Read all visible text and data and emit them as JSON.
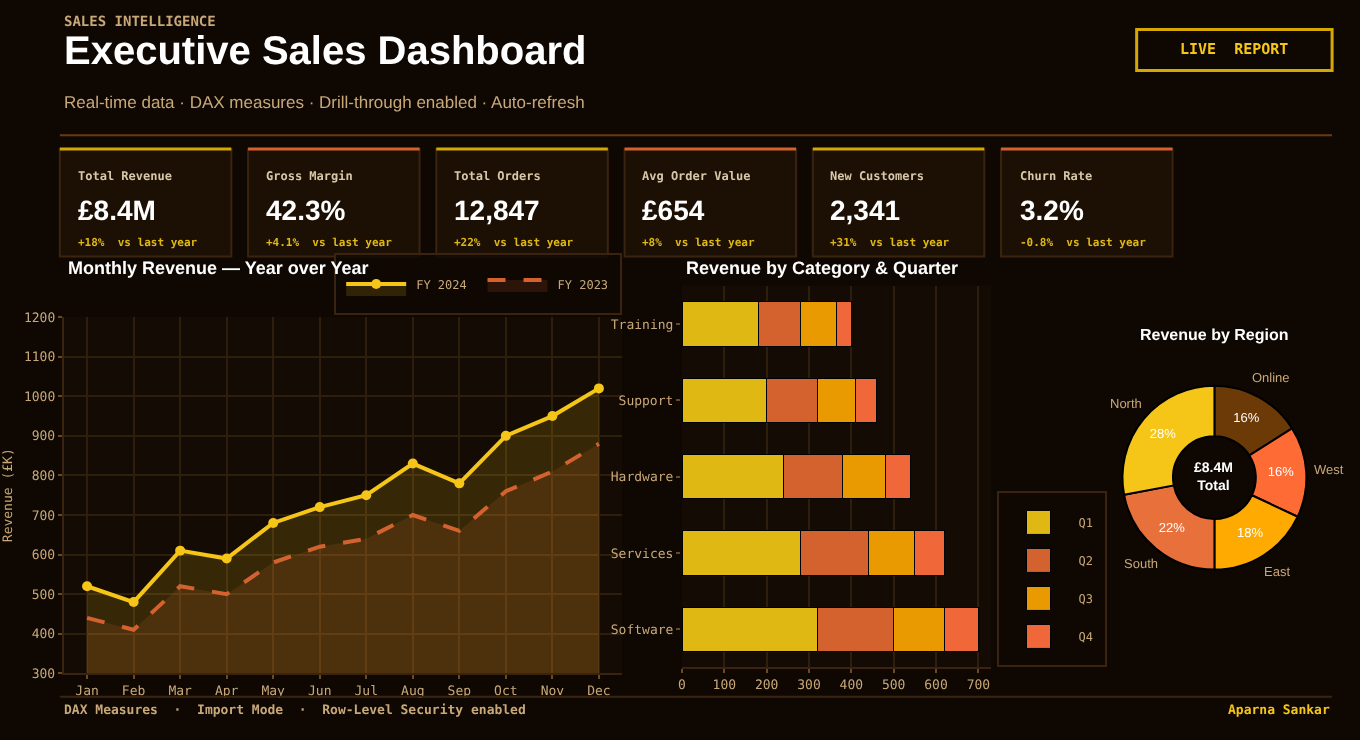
{
  "chart_data": [
    {
      "type": "other",
      "title": "Executive Sales Dashboard",
      "subtitle": "Real-time data · DAX measures · Drill-through enabled · Auto-refresh",
      "annotations": [
        "SALES INTELLIGENCE",
        "LIVE  REPORT",
        "DAX Measures  ·  Import Mode  ·  Row-Level Security enabled",
        "Aparna Sankar"
      ]
    },
    {
      "type": "other",
      "title": "Total Revenue",
      "annotations": [
        "£8.4M",
        "+18%  vs last year"
      ]
    },
    {
      "type": "other",
      "title": "Gross Margin",
      "annotations": [
        "42.3%",
        "+4.1%  vs last year"
      ]
    },
    {
      "type": "other",
      "title": "Total Orders",
      "annotations": [
        "12,847",
        "+22%  vs last year"
      ]
    },
    {
      "type": "other",
      "title": "Avg Order Value",
      "annotations": [
        "£654",
        "+8%  vs last year"
      ]
    },
    {
      "type": "other",
      "title": "New Customers",
      "annotations": [
        "2,341",
        "+31%  vs last year"
      ]
    },
    {
      "type": "other",
      "title": "Churn Rate",
      "annotations": [
        "3.2%",
        "-0.8%  vs last year"
      ]
    },
    {
      "type": "area",
      "title": "Monthly Revenue — Year over Year",
      "ylabel": "Revenue (£K)",
      "categories": [
        "Jan",
        "Feb",
        "Mar",
        "Apr",
        "May",
        "Jun",
        "Jul",
        "Aug",
        "Sep",
        "Oct",
        "Nov",
        "Dec"
      ],
      "ylim": [
        300,
        1200
      ],
      "yticks": [
        300,
        400,
        500,
        600,
        700,
        800,
        900,
        1000,
        1100,
        1200
      ],
      "grid": true,
      "legend": "top right",
      "series": [
        {
          "name": "FY 2024",
          "color": "#f5c518",
          "marker": "circle",
          "line_style": "solid",
          "values": [
            520,
            480,
            610,
            590,
            680,
            720,
            750,
            830,
            780,
            900,
            950,
            1020
          ]
        },
        {
          "name": "FY 2023",
          "color": "#d4622f",
          "marker": "none",
          "line_style": "dashed",
          "values": [
            440,
            410,
            520,
            500,
            580,
            620,
            640,
            700,
            660,
            760,
            810,
            880
          ]
        }
      ]
    },
    {
      "type": "bar",
      "title": "Revenue by Category & Quarter",
      "orientation": "horizontal",
      "stacked": true,
      "categories": [
        "Training",
        "Support",
        "Hardware",
        "Services",
        "Software"
      ],
      "xlim": [
        0,
        730
      ],
      "xticks": [
        0,
        100,
        200,
        300,
        400,
        500,
        600,
        700
      ],
      "grid": "x",
      "legend": "bottom right",
      "series": [
        {
          "name": "Q1",
          "color": "#e0b814",
          "values": [
            180,
            200,
            240,
            280,
            320
          ]
        },
        {
          "name": "Q2",
          "color": "#d4622f",
          "values": [
            100,
            120,
            140,
            160,
            180
          ]
        },
        {
          "name": "Q3",
          "color": "#e89a00",
          "values": [
            85,
            90,
            100,
            110,
            120
          ]
        },
        {
          "name": "Q4",
          "color": "#f0683a",
          "values": [
            35,
            50,
            60,
            70,
            80
          ]
        }
      ]
    },
    {
      "type": "donut",
      "title": "Revenue by Region",
      "categories": [
        "Online",
        "West",
        "East",
        "South",
        "North"
      ],
      "values": [
        16,
        16,
        18,
        22,
        28
      ],
      "value_labels": [
        "16%",
        "16%",
        "18%",
        "22%",
        "28%"
      ],
      "colors": [
        "#6b3a06",
        "#ff6b35",
        "#ffaa00",
        "#e8703a",
        "#f5c518"
      ],
      "annotations": [
        "£8.4M\nTotal"
      ]
    }
  ]
}
